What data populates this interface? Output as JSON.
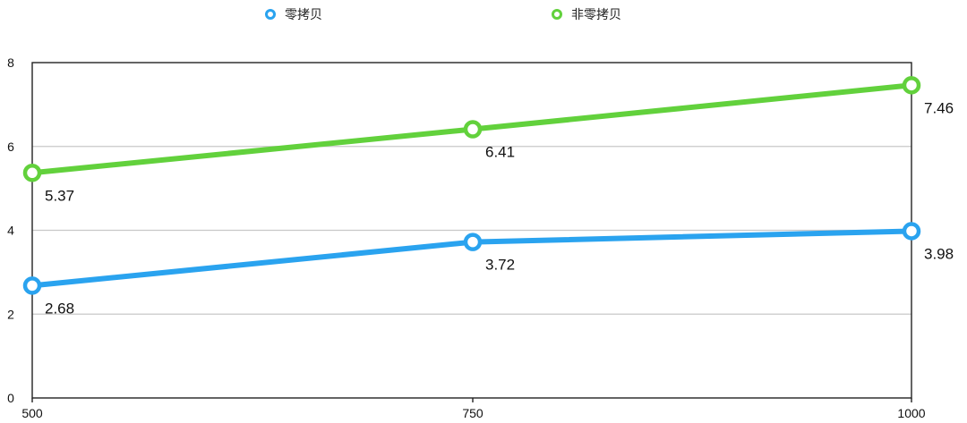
{
  "chart_data": {
    "type": "line",
    "x": [
      "500",
      "750",
      "1000"
    ],
    "series": [
      {
        "name": "零拷贝",
        "values": [
          2.68,
          3.72,
          3.98
        ],
        "color": "#2aa3ef"
      },
      {
        "name": "非零拷贝",
        "values": [
          5.37,
          6.41,
          7.46
        ],
        "color": "#62d13c"
      }
    ],
    "data_labels": {
      "零拷贝": [
        "2.68",
        "3.72",
        "3.98"
      ],
      "非零拷贝": [
        "5.37",
        "6.41",
        "7.46"
      ]
    },
    "ylim": [
      0,
      8
    ],
    "yticks": [
      "0",
      "2",
      "4",
      "6",
      "8"
    ],
    "grid": true,
    "legend_position": "top",
    "frame_color": "#222222",
    "grid_color": "#c8c8c8"
  }
}
